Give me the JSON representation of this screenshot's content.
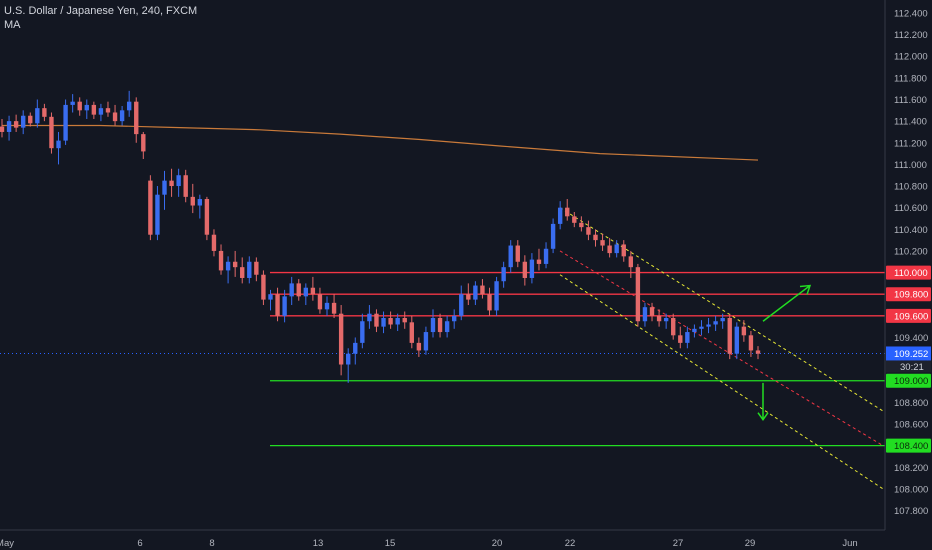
{
  "header": {
    "symbol_line": "U.S. Dollar / Japanese Yen, 240, FXCM",
    "indicator": "MA"
  },
  "colors": {
    "background": "#131722",
    "up": "#3a6df0",
    "down": "#e46a6a",
    "ma": "#c97a3a",
    "resistance": "#f23645",
    "support": "#22dd22",
    "channel": "#e6e635",
    "midline": "#f23645",
    "arrow": "#22dd22",
    "price_tag": "#2962ff"
  },
  "chart_data": {
    "type": "candlestick",
    "instrument": "U.S. Dollar / Japanese Yen",
    "timeframe": "240",
    "ylim": [
      107.62,
      112.52
    ],
    "y_ticks": [
      "112.400",
      "112.200",
      "112.000",
      "111.800",
      "111.600",
      "111.400",
      "111.200",
      "111.000",
      "110.800",
      "110.600",
      "110.400",
      "110.200",
      "110.000",
      "109.800",
      "109.600",
      "109.400",
      "109.200",
      "109.000",
      "108.800",
      "108.600",
      "108.400",
      "108.200",
      "108.000",
      "107.800"
    ],
    "x_ticks": [
      "May",
      "6",
      "8",
      "13",
      "15",
      "20",
      "22",
      "27",
      "29",
      "Jun"
    ],
    "current_price": "109.252",
    "countdown": "30:21",
    "levels": [
      {
        "value": 110.0,
        "label": "110.000",
        "kind": "resistance"
      },
      {
        "value": 109.8,
        "label": "109.800",
        "kind": "resistance"
      },
      {
        "value": 109.6,
        "label": "109.600",
        "kind": "resistance"
      },
      {
        "value": 109.0,
        "label": "109.000",
        "kind": "support"
      },
      {
        "value": 108.4,
        "label": "108.400",
        "kind": "support"
      }
    ],
    "candles": [
      [
        111.35,
        111.42,
        111.25,
        111.3
      ],
      [
        111.3,
        111.45,
        111.22,
        111.4
      ],
      [
        111.4,
        111.46,
        111.3,
        111.34
      ],
      [
        111.34,
        111.5,
        111.28,
        111.45
      ],
      [
        111.45,
        111.48,
        111.35,
        111.38
      ],
      [
        111.38,
        111.6,
        111.34,
        111.52
      ],
      [
        111.52,
        111.56,
        111.4,
        111.44
      ],
      [
        111.44,
        111.48,
        111.1,
        111.15
      ],
      [
        111.15,
        111.3,
        111.0,
        111.22
      ],
      [
        111.22,
        111.6,
        111.18,
        111.55
      ],
      [
        111.55,
        111.65,
        111.48,
        111.58
      ],
      [
        111.58,
        111.62,
        111.45,
        111.5
      ],
      [
        111.5,
        111.6,
        111.42,
        111.55
      ],
      [
        111.55,
        111.58,
        111.42,
        111.46
      ],
      [
        111.46,
        111.56,
        111.4,
        111.52
      ],
      [
        111.52,
        111.58,
        111.44,
        111.48
      ],
      [
        111.48,
        111.55,
        111.36,
        111.4
      ],
      [
        111.4,
        111.54,
        111.36,
        111.5
      ],
      [
        111.5,
        111.68,
        111.44,
        111.58
      ],
      [
        111.58,
        111.62,
        111.2,
        111.28
      ],
      [
        111.28,
        111.3,
        111.05,
        111.12
      ],
      [
        110.85,
        110.9,
        110.3,
        110.35
      ],
      [
        110.35,
        110.8,
        110.3,
        110.72
      ],
      [
        110.72,
        110.94,
        110.58,
        110.85
      ],
      [
        110.85,
        110.96,
        110.7,
        110.8
      ],
      [
        110.8,
        110.96,
        110.7,
        110.9
      ],
      [
        110.9,
        110.95,
        110.65,
        110.7
      ],
      [
        110.7,
        110.82,
        110.55,
        110.62
      ],
      [
        110.62,
        110.72,
        110.5,
        110.68
      ],
      [
        110.68,
        110.7,
        110.3,
        110.35
      ],
      [
        110.35,
        110.4,
        110.15,
        110.2
      ],
      [
        110.2,
        110.26,
        109.98,
        110.02
      ],
      [
        110.02,
        110.15,
        109.9,
        110.1
      ],
      [
        110.1,
        110.2,
        109.96,
        110.05
      ],
      [
        110.05,
        110.14,
        109.9,
        109.95
      ],
      [
        109.95,
        110.15,
        109.9,
        110.1
      ],
      [
        110.1,
        110.14,
        109.92,
        109.98
      ],
      [
        109.98,
        110.02,
        109.7,
        109.75
      ],
      [
        109.75,
        109.84,
        109.65,
        109.8
      ],
      [
        109.8,
        109.86,
        109.55,
        109.6
      ],
      [
        109.6,
        109.84,
        109.54,
        109.78
      ],
      [
        109.78,
        109.96,
        109.7,
        109.9
      ],
      [
        109.9,
        109.94,
        109.74,
        109.78
      ],
      [
        109.78,
        109.9,
        109.7,
        109.86
      ],
      [
        109.86,
        109.96,
        109.74,
        109.8
      ],
      [
        109.8,
        109.86,
        109.62,
        109.66
      ],
      [
        109.66,
        109.78,
        109.6,
        109.72
      ],
      [
        109.72,
        109.8,
        109.58,
        109.62
      ],
      [
        109.62,
        109.7,
        109.05,
        109.15
      ],
      [
        109.15,
        109.3,
        108.98,
        109.25
      ],
      [
        109.25,
        109.4,
        109.15,
        109.35
      ],
      [
        109.35,
        109.62,
        109.3,
        109.55
      ],
      [
        109.55,
        109.7,
        109.48,
        109.62
      ],
      [
        109.62,
        109.66,
        109.45,
        109.5
      ],
      [
        109.5,
        109.64,
        109.44,
        109.58
      ],
      [
        109.58,
        109.64,
        109.48,
        109.52
      ],
      [
        109.52,
        109.62,
        109.46,
        109.58
      ],
      [
        109.58,
        109.64,
        109.48,
        109.54
      ],
      [
        109.54,
        109.6,
        109.3,
        109.35
      ],
      [
        109.35,
        109.4,
        109.22,
        109.28
      ],
      [
        109.28,
        109.5,
        109.24,
        109.45
      ],
      [
        109.45,
        109.66,
        109.4,
        109.58
      ],
      [
        109.58,
        109.62,
        109.4,
        109.45
      ],
      [
        109.45,
        109.6,
        109.4,
        109.55
      ],
      [
        109.55,
        109.66,
        109.48,
        109.6
      ],
      [
        109.6,
        109.88,
        109.56,
        109.8
      ],
      [
        109.8,
        109.9,
        109.7,
        109.75
      ],
      [
        109.75,
        109.92,
        109.7,
        109.88
      ],
      [
        109.88,
        109.94,
        109.76,
        109.8
      ],
      [
        109.8,
        109.86,
        109.6,
        109.65
      ],
      [
        109.65,
        109.96,
        109.6,
        109.92
      ],
      [
        109.92,
        110.1,
        109.86,
        110.05
      ],
      [
        110.05,
        110.3,
        110.0,
        110.25
      ],
      [
        110.25,
        110.3,
        110.05,
        110.1
      ],
      [
        110.1,
        110.16,
        109.88,
        109.95
      ],
      [
        109.95,
        110.18,
        109.9,
        110.12
      ],
      [
        110.12,
        110.22,
        110.02,
        110.08
      ],
      [
        110.08,
        110.28,
        110.04,
        110.22
      ],
      [
        110.22,
        110.5,
        110.18,
        110.45
      ],
      [
        110.45,
        110.66,
        110.4,
        110.6
      ],
      [
        110.6,
        110.68,
        110.48,
        110.52
      ],
      [
        110.52,
        110.56,
        110.42,
        110.46
      ],
      [
        110.46,
        110.52,
        110.38,
        110.42
      ],
      [
        110.42,
        110.48,
        110.3,
        110.35
      ],
      [
        110.35,
        110.4,
        110.24,
        110.3
      ],
      [
        110.3,
        110.36,
        110.2,
        110.25
      ],
      [
        110.25,
        110.32,
        110.14,
        110.18
      ],
      [
        110.18,
        110.3,
        110.14,
        110.26
      ],
      [
        110.26,
        110.3,
        110.1,
        110.15
      ],
      [
        110.15,
        110.2,
        109.95,
        110.05
      ],
      [
        110.05,
        110.08,
        109.5,
        109.55
      ],
      [
        109.55,
        109.72,
        109.5,
        109.68
      ],
      [
        109.68,
        109.72,
        109.55,
        109.6
      ],
      [
        109.6,
        109.66,
        109.5,
        109.55
      ],
      [
        109.55,
        109.62,
        109.48,
        109.58
      ],
      [
        109.58,
        109.62,
        109.38,
        109.42
      ],
      [
        109.42,
        109.5,
        109.3,
        109.35
      ],
      [
        109.35,
        109.5,
        109.3,
        109.45
      ],
      [
        109.45,
        109.52,
        109.4,
        109.48
      ],
      [
        109.48,
        109.56,
        109.42,
        109.5
      ],
      [
        109.5,
        109.58,
        109.44,
        109.52
      ],
      [
        109.52,
        109.6,
        109.46,
        109.55
      ],
      [
        109.55,
        109.62,
        109.48,
        109.58
      ],
      [
        109.58,
        109.62,
        109.2,
        109.25
      ],
      [
        109.25,
        109.54,
        109.2,
        109.5
      ],
      [
        109.5,
        109.56,
        109.36,
        109.42
      ],
      [
        109.42,
        109.46,
        109.22,
        109.28
      ],
      [
        109.28,
        109.32,
        109.2,
        109.25
      ]
    ],
    "ma": [
      [
        111.4,
        111.36
      ],
      [
        111.38,
        111.36
      ],
      [
        111.3,
        111.34
      ],
      [
        111.2,
        111.32
      ],
      [
        111.1,
        111.28
      ],
      [
        111.0,
        111.23
      ],
      [
        110.9,
        111.17
      ],
      [
        110.8,
        111.1
      ],
      [
        110.75,
        111.04
      ]
    ],
    "channel": {
      "upper": [
        [
          109.85,
          110.6
        ],
        [
          107.8,
          108.72
        ]
      ],
      "lower": [
        [
          109.85,
          109.98
        ],
        [
          107.8,
          108.0
        ]
      ],
      "mid": [
        [
          109.85,
          110.2
        ],
        [
          107.8,
          108.4
        ]
      ]
    },
    "arrows": [
      {
        "direction": "up",
        "from": [
          108.5,
          109.55
        ],
        "to": [
          108.72,
          109.88
        ]
      },
      {
        "direction": "down",
        "from": [
          108.5,
          108.98
        ],
        "to": [
          108.5,
          108.64
        ]
      }
    ]
  }
}
